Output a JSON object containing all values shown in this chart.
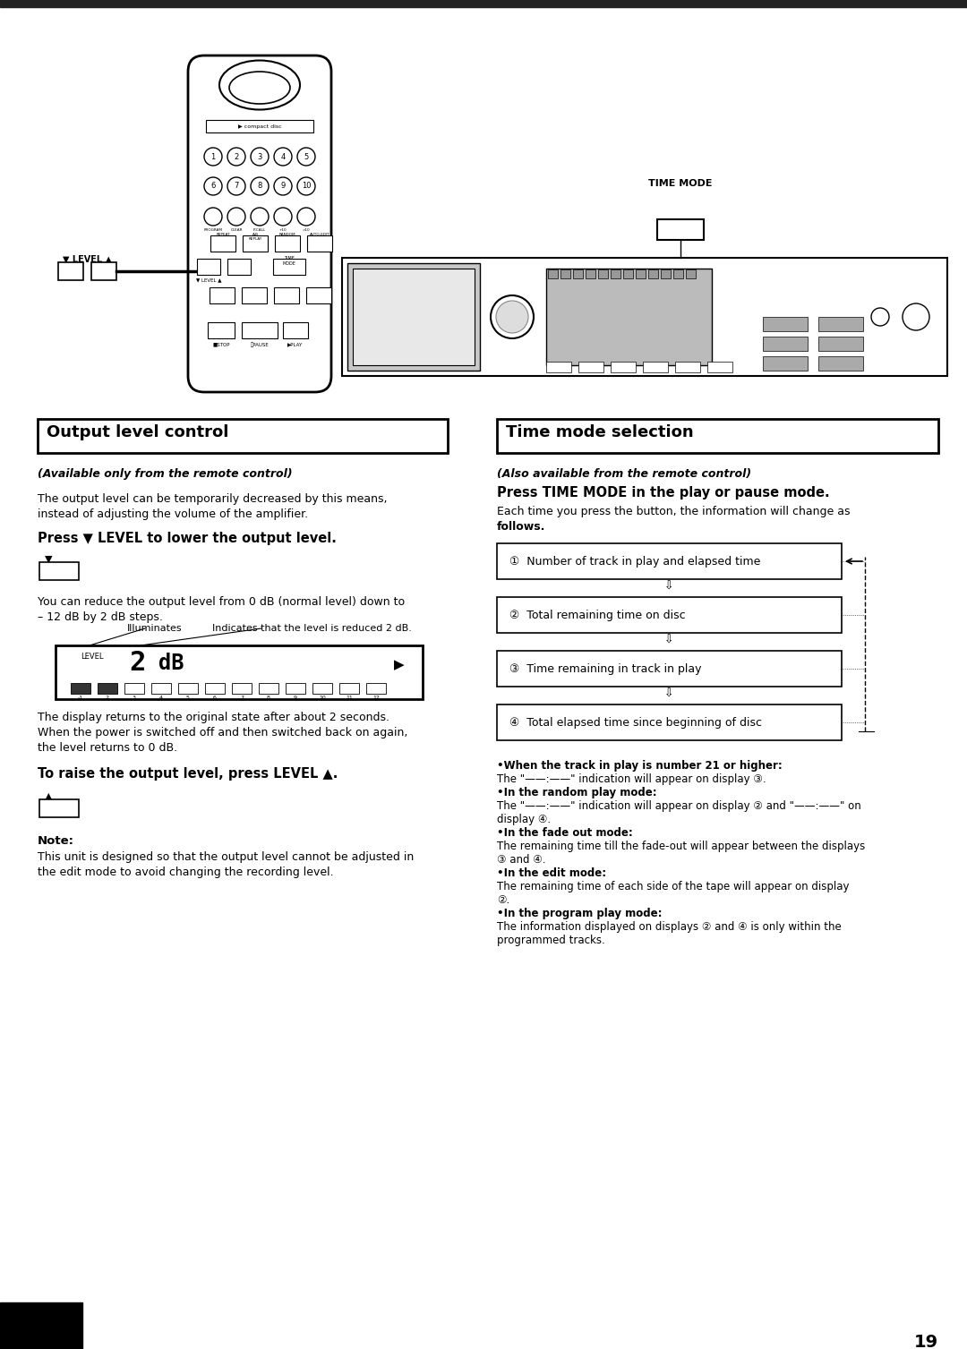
{
  "page_number": "19",
  "background_color": "#ffffff",
  "text_color": "#000000",
  "section1_title": "Output level control",
  "section2_title": "Time mode selection",
  "section1_sub": "(Available only from the remote control)",
  "section2_sub": "(Also available from the remote control)",
  "section1_body1_l1": "The output level can be temporarily decreased by this means,",
  "section1_body1_l2": "instead of adjusting the volume of the amplifier.",
  "section1_heading1": "Press ▼ LEVEL to lower the output level.",
  "section1_body2_l1": "You can reduce the output level from 0 dB (normal level) down to",
  "section1_body2_l2": "– 12 dB by 2 dB steps.",
  "section1_annotation1": "Indicates that the level is reduced 2 dB.",
  "section1_annotation2": "Illuminates",
  "section1_display_extra_l1": "The display returns to the original state after about 2 seconds.",
  "section1_display_extra_l2": "When the power is switched off and then switched back on again,",
  "section1_display_extra_l3": "the level returns to 0 dB.",
  "section1_heading2": "To raise the output level, press LEVEL ▲.",
  "section1_note_title": "Note:",
  "section1_note_l1": "This unit is designed so that the output level cannot be adjusted in",
  "section1_note_l2": "the edit mode to avoid changing the recording level.",
  "section2_heading1a": "(Also available from the remote control)",
  "section2_heading1b": "Press TIME MODE in the play or pause mode.",
  "section2_body1_l1": "Each time you press the button, the information will change as",
  "section2_body1_l2": "follows.",
  "display_items": [
    "①  Number of track in play and elapsed time",
    "②  Total remaining time on disc",
    "③  Time remaining in track in play",
    "④  Total elapsed time since beginning of disc"
  ],
  "bullet_notes": [
    [
      "•When the track in play is number 21 or higher:",
      true
    ],
    [
      "The \"——:——\" indication will appear on display ③.",
      false
    ],
    [
      "•In the random play mode:",
      true
    ],
    [
      "The \"——:——\" indication will appear on display ② and \"——:——\" on",
      false
    ],
    [
      "display ④.",
      false
    ],
    [
      "•In the fade out mode:",
      true
    ],
    [
      "The remaining time till the fade-out will appear between the displays",
      false
    ],
    [
      "③ and ④.",
      false
    ],
    [
      "•In the edit mode:",
      true
    ],
    [
      "The remaining time of each side of the tape will appear on display",
      false
    ],
    [
      "②.",
      false
    ],
    [
      "•In the program play mode:",
      true
    ],
    [
      "The information displayed on displays ② and ④ is only within the",
      false
    ],
    [
      "programmed tracks.",
      false
    ]
  ],
  "time_mode_label": "TIME MODE"
}
